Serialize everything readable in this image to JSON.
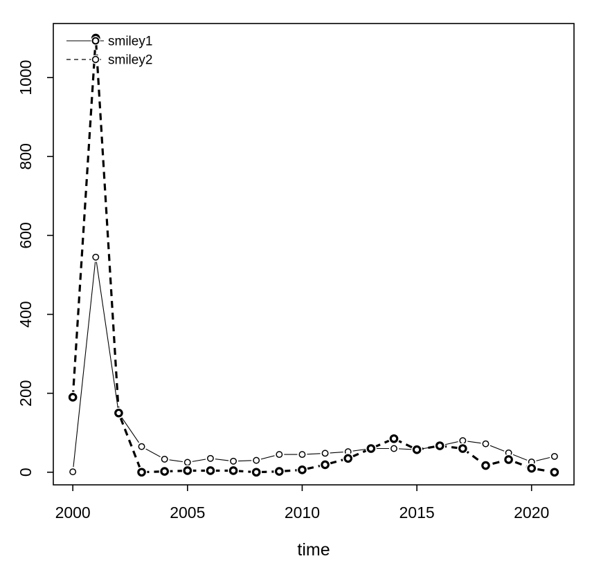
{
  "chart_data": {
    "type": "line",
    "title": "",
    "xlabel": "time",
    "ylabel": "",
    "x": [
      2000,
      2001,
      2002,
      2003,
      2004,
      2005,
      2006,
      2007,
      2008,
      2009,
      2010,
      2011,
      2012,
      2013,
      2014,
      2015,
      2016,
      2017,
      2018,
      2019,
      2020,
      2021
    ],
    "series": [
      {
        "name": "smiley1",
        "line_style": "solid",
        "line_width": "thin",
        "marker": "open-circle",
        "values": [
          1,
          545,
          150,
          65,
          33,
          25,
          35,
          28,
          30,
          45,
          45,
          48,
          52,
          60,
          60,
          57,
          67,
          80,
          72,
          49,
          26,
          40
        ]
      },
      {
        "name": "smiley2",
        "line_style": "dashed",
        "line_width": "thick",
        "marker": "open-circle-bold",
        "values": [
          190,
          1100,
          150,
          0,
          2,
          4,
          4,
          4,
          0,
          2,
          6,
          19,
          35,
          60,
          85,
          57,
          67,
          60,
          17,
          32,
          10,
          0
        ]
      }
    ],
    "xtick_labels": [
      "2000",
      "2005",
      "2010",
      "2015",
      "2020"
    ],
    "xtick_values": [
      2000,
      2005,
      2010,
      2015,
      2020
    ],
    "ytick_labels": [
      "0",
      "200",
      "400",
      "600",
      "800",
      "1000"
    ],
    "ytick_values": [
      0,
      200,
      400,
      600,
      800,
      1000
    ],
    "xlim": [
      1999.15,
      2021.85
    ],
    "ylim": [
      -32,
      1137
    ],
    "grid": false,
    "legend": {
      "position": "top-left",
      "entries": [
        {
          "label": "smiley1"
        },
        {
          "label": "smiley2"
        }
      ]
    },
    "colors": {
      "foreground": "#000000",
      "background": "#ffffff"
    }
  }
}
